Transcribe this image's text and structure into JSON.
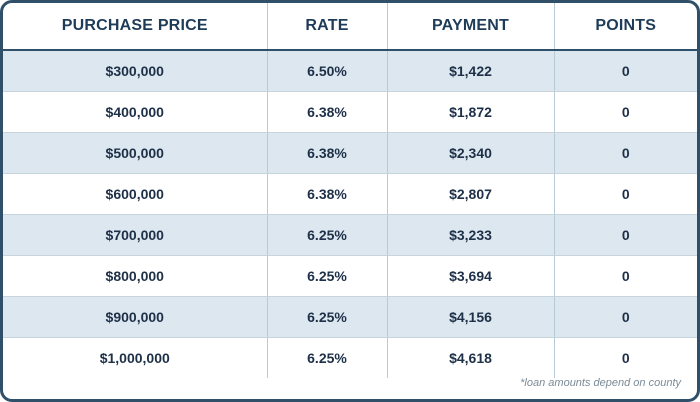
{
  "table": {
    "headers": [
      "PURCHASE PRICE",
      "RATE",
      "PAYMENT",
      "POINTS"
    ],
    "rows": [
      {
        "price": "$300,000",
        "rate": "6.50%",
        "payment": "$1,422",
        "points": "0"
      },
      {
        "price": "$400,000",
        "rate": "6.38%",
        "payment": "$1,872",
        "points": "0"
      },
      {
        "price": "$500,000",
        "rate": "6.38%",
        "payment": "$2,340",
        "points": "0"
      },
      {
        "price": "$600,000",
        "rate": "6.38%",
        "payment": "$2,807",
        "points": "0"
      },
      {
        "price": "$700,000",
        "rate": "6.25%",
        "payment": "$3,233",
        "points": "0"
      },
      {
        "price": "$800,000",
        "rate": "6.25%",
        "payment": "$3,694",
        "points": "0"
      },
      {
        "price": "$900,000",
        "rate": "6.25%",
        "payment": "$4,156",
        "points": "0"
      },
      {
        "price": "$1,000,000",
        "rate": "6.25%",
        "payment": "$4,618",
        "points": "0"
      }
    ]
  },
  "footnote": "*loan amounts depend on county",
  "colors": {
    "border": "#2f5068",
    "header_text": "#1e3b58",
    "shaded_row": "#dce7ef"
  }
}
